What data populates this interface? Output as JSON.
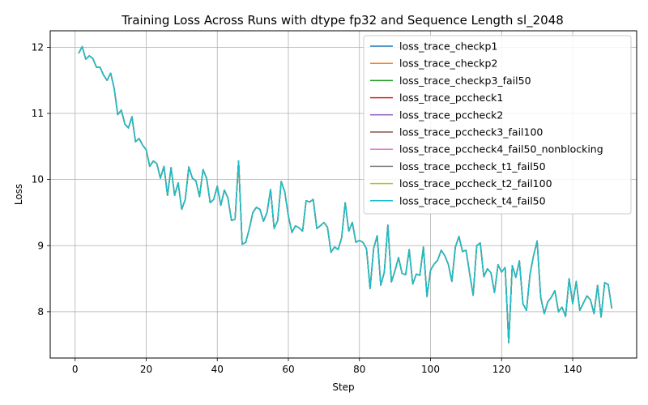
{
  "chart_data": {
    "type": "line",
    "title": "Training Loss Across Runs with dtype fp32 and Sequence Length sl_2048",
    "xlabel": "Step",
    "ylabel": "Loss",
    "xlim": [
      -7,
      158
    ],
    "ylim": [
      7.3,
      12.25
    ],
    "xticks": [
      0,
      20,
      40,
      60,
      80,
      100,
      120,
      140
    ],
    "yticks": [
      8,
      9,
      10,
      11,
      12
    ],
    "grid": true,
    "legend_position": "top-right",
    "x": [
      1,
      2,
      3,
      4,
      5,
      6,
      7,
      8,
      9,
      10,
      11,
      12,
      13,
      14,
      15,
      16,
      17,
      18,
      19,
      20,
      21,
      22,
      23,
      24,
      25,
      26,
      27,
      28,
      29,
      30,
      31,
      32,
      33,
      34,
      35,
      36,
      37,
      38,
      39,
      40,
      41,
      42,
      43,
      44,
      45,
      46,
      47,
      48,
      49,
      50,
      51,
      52,
      53,
      54,
      55,
      56,
      57,
      58,
      59,
      60,
      61,
      62,
      63,
      64,
      65,
      66,
      67,
      68,
      69,
      70,
      71,
      72,
      73,
      74,
      75,
      76,
      77,
      78,
      79,
      80,
      81,
      82,
      83,
      84,
      85,
      86,
      87,
      88,
      89,
      90,
      91,
      92,
      93,
      94,
      95,
      96,
      97,
      98,
      99,
      100,
      101,
      102,
      103,
      104,
      105,
      106,
      107,
      108,
      109,
      110,
      111,
      112,
      113,
      114,
      115,
      116,
      117,
      118,
      119,
      120,
      121,
      122,
      123,
      124,
      125,
      126,
      127,
      128,
      129,
      130,
      131,
      132,
      133,
      134,
      135,
      136,
      137,
      138,
      139,
      140,
      141,
      142,
      143,
      144,
      145,
      146,
      147,
      148,
      149,
      150,
      151
    ],
    "y": [
      11.91,
      12.01,
      11.82,
      11.87,
      11.83,
      11.7,
      11.7,
      11.58,
      11.5,
      11.61,
      11.38,
      10.98,
      11.05,
      10.84,
      10.78,
      10.95,
      10.57,
      10.62,
      10.52,
      10.45,
      10.2,
      10.28,
      10.24,
      10.02,
      10.2,
      9.76,
      10.18,
      9.76,
      9.95,
      9.55,
      9.7,
      10.19,
      10.02,
      9.98,
      9.74,
      10.15,
      10.02,
      9.65,
      9.7,
      9.9,
      9.61,
      9.84,
      9.72,
      9.38,
      9.4,
      10.28,
      9.02,
      9.05,
      9.25,
      9.5,
      9.58,
      9.55,
      9.37,
      9.5,
      9.85,
      9.26,
      9.38,
      9.97,
      9.81,
      9.45,
      9.2,
      9.3,
      9.27,
      9.22,
      9.68,
      9.66,
      9.7,
      9.26,
      9.3,
      9.35,
      9.28,
      8.9,
      8.98,
      8.94,
      9.12,
      9.65,
      9.22,
      9.35,
      9.05,
      9.08,
      9.05,
      8.95,
      8.35,
      8.96,
      9.15,
      8.4,
      8.6,
      9.31,
      8.45,
      8.62,
      8.82,
      8.58,
      8.56,
      8.94,
      8.42,
      8.57,
      8.55,
      8.98,
      8.23,
      8.63,
      8.72,
      8.78,
      8.93,
      8.85,
      8.72,
      8.46,
      8.98,
      9.14,
      8.91,
      8.93,
      8.58,
      8.25,
      9.0,
      9.04,
      8.53,
      8.65,
      8.59,
      8.29,
      8.71,
      8.6,
      8.67,
      7.53,
      8.7,
      8.52,
      8.77,
      8.12,
      8.02,
      8.57,
      8.85,
      9.07,
      8.22,
      7.97,
      8.15,
      8.22,
      8.32,
      8.0,
      8.07,
      7.93,
      8.5,
      8.12,
      8.46,
      8.02,
      8.13,
      8.24,
      8.18,
      7.97,
      8.4,
      7.92,
      8.44,
      8.41,
      8.05
    ],
    "series": [
      {
        "name": "loss_trace_checkp1",
        "color": "#1f77b4"
      },
      {
        "name": "loss_trace_checkp2",
        "color": "#ff7f0e"
      },
      {
        "name": "loss_trace_checkp3_fail50",
        "color": "#2ca02c"
      },
      {
        "name": "loss_trace_pccheck1",
        "color": "#d62728"
      },
      {
        "name": "loss_trace_pccheck2",
        "color": "#9467bd"
      },
      {
        "name": "loss_trace_pccheck3_fail100",
        "color": "#8c564b"
      },
      {
        "name": "loss_trace_pccheck4_fail50_nonblocking",
        "color": "#e377c2"
      },
      {
        "name": "loss_trace_pccheck_t1_fail50",
        "color": "#7f7f7f"
      },
      {
        "name": "loss_trace_pccheck_t2_fail100",
        "color": "#bcbd22"
      },
      {
        "name": "loss_trace_pccheck_t4_fail50",
        "color": "#17becf"
      }
    ]
  }
}
